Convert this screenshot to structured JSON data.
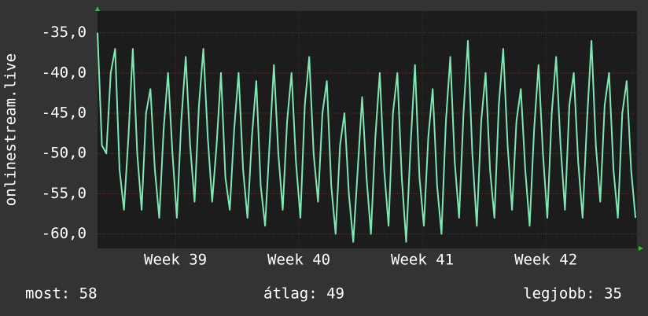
{
  "chart_data": {
    "type": "line",
    "y_label": "onlinestream.live",
    "x": [
      0,
      6,
      12,
      18,
      24,
      30,
      36,
      42,
      48,
      54,
      60,
      66,
      72,
      78,
      84,
      90,
      96,
      102,
      108,
      114,
      120,
      126,
      132,
      138,
      144,
      150,
      156,
      162,
      168,
      174,
      180,
      186,
      192,
      198,
      204,
      210,
      216,
      222,
      228,
      234,
      240,
      246,
      252,
      258,
      264,
      270,
      276,
      282,
      288,
      294,
      300,
      306,
      312,
      318,
      324,
      330,
      336,
      342,
      348,
      354,
      360,
      366,
      372,
      378,
      384,
      390,
      396,
      402,
      408,
      414,
      420,
      426,
      432,
      438,
      444,
      450,
      456,
      462,
      468,
      474,
      480,
      486,
      492,
      498,
      504,
      510,
      516,
      522,
      528,
      534,
      540,
      546,
      552,
      558,
      564,
      570,
      576,
      582,
      588,
      594,
      600,
      606,
      612,
      618,
      624,
      630,
      636,
      642,
      648,
      654,
      660,
      666,
      672,
      678,
      684,
      690,
      696,
      702,
      708,
      714,
      720,
      726,
      732
    ],
    "series": [
      {
        "color": "#7ee8b4",
        "values": [
          -35,
          -49,
          -50,
          -40,
          -37,
          -52,
          -57,
          -48,
          -37,
          -50,
          -57,
          -45,
          -42,
          -52,
          -58,
          -47,
          -40,
          -50,
          -58,
          -46,
          -38,
          -49,
          -56,
          -44,
          -37,
          -48,
          -56,
          -49,
          -40,
          -53,
          -57,
          -47,
          -40,
          -52,
          -58,
          -48,
          -41,
          -54,
          -59,
          -49,
          -39,
          -50,
          -57,
          -46,
          -40,
          -51,
          -58,
          -44,
          -38,
          -50,
          -56,
          -45,
          -41,
          -54,
          -60,
          -49,
          -45,
          -55,
          -61,
          -52,
          -43,
          -53,
          -60,
          -48,
          -40,
          -52,
          -59,
          -45,
          -40,
          -53,
          -61,
          -49,
          -39,
          -53,
          -59,
          -48,
          -42,
          -54,
          -60,
          -46,
          -38,
          -51,
          -58,
          -45,
          -36,
          -50,
          -59,
          -46,
          -40,
          -52,
          -58,
          -44,
          -37,
          -49,
          -57,
          -46,
          -42,
          -52,
          -59,
          -47,
          -39,
          -50,
          -58,
          -45,
          -38,
          -49,
          -57,
          -44,
          -40,
          -51,
          -58,
          -46,
          -36,
          -49,
          -56,
          -44,
          -40,
          -52,
          -58,
          -45,
          -41,
          -52,
          -58
        ]
      }
    ],
    "xlim": [
      0,
      734
    ],
    "xticks": [
      {
        "value": 106,
        "label": "Week 39"
      },
      {
        "value": 274,
        "label": "Week 40"
      },
      {
        "value": 442,
        "label": "Week 41"
      },
      {
        "value": 610,
        "label": "Week 42"
      }
    ],
    "ylim": [
      -61.8,
      -32.3
    ],
    "yticks": [
      {
        "value": -60,
        "label": "-60,0"
      },
      {
        "value": -55,
        "label": "-55,0"
      },
      {
        "value": -50,
        "label": "-50,0"
      },
      {
        "value": -45,
        "label": "-45,0"
      },
      {
        "value": -40,
        "label": "-40,0"
      },
      {
        "value": -35,
        "label": "-35,0"
      }
    ],
    "grid": true,
    "footer": [
      "most: 58",
      "átlag: 49",
      "legjobb: 35"
    ]
  }
}
